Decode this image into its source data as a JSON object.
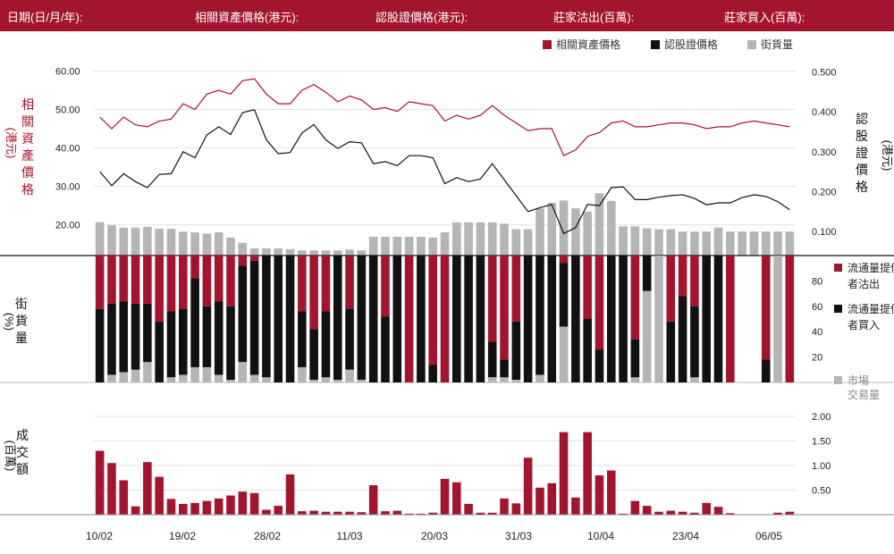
{
  "header": {
    "date_label": "日期(日/月/年):",
    "underlying_label": "相關資產價格(港元):",
    "warrant_label": "認股證價格(港元):",
    "mm_sell_label": "莊家沽出(百萬):",
    "mm_buy_label": "莊家買入(百萬):"
  },
  "colors": {
    "red": "#a3152f",
    "black": "#111111",
    "gray": "#b5b5b5",
    "header_bg": "#a3152f"
  },
  "chart_data": [
    {
      "type": "line",
      "legend": [
        "相關資產價格",
        "認股證價格",
        "街貨量"
      ],
      "ylabel_left": "相關資產價格(港元)",
      "ylabel_right": "認股證價格(港元)",
      "yticks_left": [
        "60.00",
        "50.00",
        "40.00",
        "30.00",
        "20.00"
      ],
      "yticks_right": [
        "0.500",
        "0.400",
        "0.300",
        "0.200",
        "0.100"
      ],
      "ylim_left": [
        12,
        65
      ],
      "ylim_right": [
        0.04,
        0.55
      ],
      "series": [
        {
          "name": "相關資產價格",
          "axis": "left",
          "values": [
            48,
            45,
            48,
            46,
            45.5,
            47,
            47.5,
            51.5,
            50,
            54,
            55,
            54,
            57.5,
            58,
            54,
            51.5,
            51.5,
            55,
            56.5,
            54.5,
            52,
            53.5,
            52.5,
            50,
            50.5,
            49.5,
            52,
            51.5,
            51,
            47,
            48.5,
            47.5,
            48.5,
            51,
            48.5,
            46.5,
            44.5,
            45,
            45,
            38,
            39.5,
            43,
            44,
            46.5,
            47,
            45.5,
            45.5,
            46,
            46.5,
            46.5,
            46,
            45,
            45.5,
            45.5,
            46.5,
            47,
            46.5,
            46,
            45.5
          ]
        },
        {
          "name": "認股證價格",
          "axis": "right",
          "values": [
            0.25,
            0.215,
            0.245,
            0.225,
            0.21,
            0.243,
            0.245,
            0.3,
            0.285,
            0.342,
            0.362,
            0.343,
            0.398,
            0.405,
            0.33,
            0.295,
            0.298,
            0.347,
            0.368,
            0.33,
            0.308,
            0.325,
            0.322,
            0.27,
            0.275,
            0.265,
            0.29,
            0.29,
            0.285,
            0.22,
            0.235,
            0.225,
            0.232,
            0.27,
            0.23,
            0.19,
            0.15,
            0.16,
            0.168,
            0.095,
            0.11,
            0.168,
            0.165,
            0.21,
            0.212,
            0.18,
            0.18,
            0.186,
            0.19,
            0.192,
            0.183,
            0.167,
            0.172,
            0.172,
            0.185,
            0.192,
            0.188,
            0.175,
            0.155
          ]
        },
        {
          "name": "街貨量",
          "axis": "right",
          "type": "bar",
          "values": [
            0.124,
            0.116,
            0.11,
            0.11,
            0.112,
            0.107,
            0.107,
            0.1,
            0.098,
            0.095,
            0.098,
            0.085,
            0.072,
            0.058,
            0.058,
            0.058,
            0.056,
            0.053,
            0.053,
            0.053,
            0.053,
            0.055,
            0.053,
            0.087,
            0.087,
            0.087,
            0.087,
            0.087,
            0.085,
            0.098,
            0.123,
            0.123,
            0.123,
            0.123,
            0.12,
            0.106,
            0.106,
            0.158,
            0.172,
            0.178,
            0.158,
            0.15,
            0.196,
            0.177,
            0.113,
            0.113,
            0.108,
            0.106,
            0.106,
            0.1,
            0.1,
            0.1,
            0.11,
            0.1,
            0.1,
            0.1,
            0.1,
            0.1,
            0.1
          ]
        }
      ],
      "xticks": [
        "10/02",
        "19/02",
        "28/02",
        "11/03",
        "20/03",
        "31/03",
        "10/04",
        "23/04",
        "06/05"
      ]
    },
    {
      "type": "bar",
      "stacked": true,
      "ylabel": "街貨量(%)",
      "yticks": [
        "80",
        "60",
        "40",
        "20"
      ],
      "ylim": [
        0,
        100
      ],
      "legend": [
        "流通量提供者沽出",
        "流通量提供者買入",
        "市場交易量"
      ],
      "series": [
        {
          "name": "流通量提供者沽出",
          "values": [
            42,
            38,
            36,
            38,
            38,
            52,
            44,
            42,
            18,
            40,
            36,
            40,
            8,
            4,
            0,
            0,
            0,
            44,
            58,
            44,
            0,
            42,
            0,
            0,
            48,
            0,
            100,
            0,
            86,
            100,
            0,
            0,
            0,
            68,
            82,
            52,
            0,
            0,
            0,
            6,
            0,
            50,
            74,
            0,
            0,
            66,
            0,
            0,
            52,
            32,
            40,
            0,
            0,
            100,
            0,
            0,
            82,
            0,
            100,
            0
          ]
        },
        {
          "name": "流通量提供者買入",
          "values": [
            58,
            56,
            56,
            52,
            46,
            48,
            52,
            52,
            70,
            48,
            58,
            58,
            76,
            90,
            96,
            100,
            100,
            44,
            40,
            52,
            98,
            48,
            98,
            100,
            52,
            100,
            0,
            100,
            14,
            0,
            100,
            100,
            100,
            28,
            14,
            46,
            100,
            94,
            100,
            50,
            100,
            50,
            26,
            100,
            100,
            30,
            28,
            0,
            48,
            68,
            56,
            100,
            100,
            0,
            0,
            0,
            18,
            0,
            0,
            0
          ]
        },
        {
          "name": "市場交易量",
          "values": [
            0,
            6,
            8,
            10,
            16,
            0,
            4,
            6,
            12,
            12,
            6,
            2,
            16,
            6,
            4,
            0,
            0,
            12,
            2,
            4,
            2,
            10,
            2,
            0,
            0,
            0,
            0,
            0,
            0,
            0,
            0,
            0,
            0,
            4,
            4,
            2,
            0,
            6,
            0,
            44,
            0,
            0,
            0,
            0,
            0,
            4,
            72,
            100,
            0,
            0,
            4,
            0,
            0,
            0,
            0,
            0,
            0,
            100,
            0,
            100
          ]
        }
      ]
    },
    {
      "type": "bar",
      "ylabel": "成交額(百萬)",
      "yticks": [
        "2.00",
        "1.50",
        "1.00",
        "0.50"
      ],
      "ylim": [
        0,
        2.2
      ],
      "series": [
        {
          "name": "成交額",
          "values": [
            1.3,
            1.05,
            0.7,
            0.17,
            1.07,
            0.77,
            0.32,
            0.22,
            0.24,
            0.28,
            0.33,
            0.39,
            0.47,
            0.44,
            0.1,
            0.18,
            0.82,
            0.07,
            0.08,
            0.06,
            0.06,
            0.06,
            0.05,
            0.6,
            0.07,
            0.08,
            0.02,
            0.02,
            0.04,
            0.73,
            0.66,
            0.22,
            0.04,
            0.04,
            0.33,
            0.23,
            1.16,
            0.55,
            0.64,
            1.68,
            0.35,
            1.68,
            0.8,
            0.9,
            0.02,
            0.28,
            0.18,
            0.06,
            0.08,
            0.06,
            0.04,
            0.24,
            0.16,
            0.03,
            0,
            0,
            0,
            0.04,
            0.06
          ]
        }
      ]
    }
  ]
}
